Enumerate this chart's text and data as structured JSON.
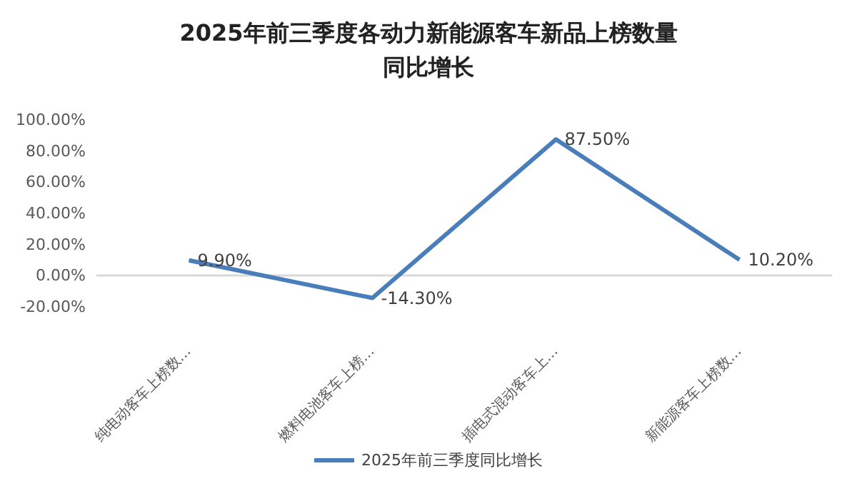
{
  "chart_data": {
    "type": "line",
    "title": "2025年前三季度各动力新能源客车新品上榜数量同比增长",
    "categories": [
      "纯电动客车上榜数…",
      "燃料电池客车上榜…",
      "插电式混动客车上…",
      "新能源客车上榜数…"
    ],
    "series": [
      {
        "name": "2025年前三季度同比增长",
        "color": "#4a7ebb",
        "values": [
          9.9,
          -14.3,
          87.5,
          10.2
        ],
        "value_labels": [
          "9.90%",
          "-14.30%",
          "87.50%",
          "10.20%"
        ]
      }
    ],
    "ylim": [
      -20,
      100
    ],
    "yticks": [
      {
        "value": -20,
        "label": "-20.00%"
      },
      {
        "value": 0,
        "label": "0.00%"
      },
      {
        "value": 20,
        "label": "20.00%"
      },
      {
        "value": 40,
        "label": "40.00%"
      },
      {
        "value": 60,
        "label": "60.00%"
      },
      {
        "value": 80,
        "label": "80.00%"
      },
      {
        "value": 100,
        "label": "100.00%"
      }
    ],
    "legend": "bottom",
    "marker": "none",
    "line_style": "solid"
  }
}
